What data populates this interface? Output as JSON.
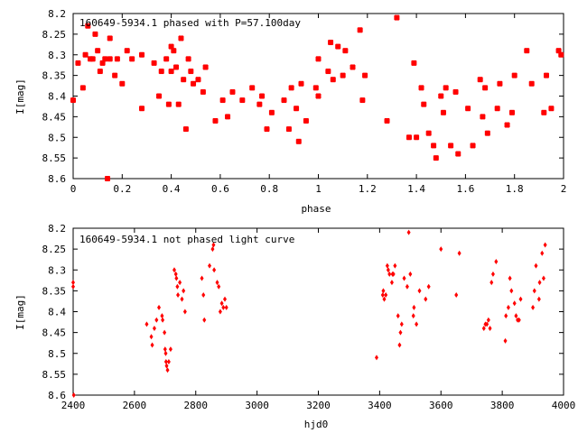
{
  "chart_data": [
    {
      "type": "scatter",
      "title": "160649-5934.1 phased with P=57.100day",
      "xlabel": "phase",
      "ylabel": "I[mag]",
      "xlim": [
        0,
        2
      ],
      "ylim": [
        8.6,
        8.2
      ],
      "y_inverted": true,
      "xticks": [
        "0",
        "0.2",
        "0.4",
        "0.6",
        "0.8",
        "1",
        "1.2",
        "1.4",
        "1.6",
        "1.8",
        "2"
      ],
      "yticks": [
        "8.2",
        "8.25",
        "8.3",
        "8.35",
        "8.4",
        "8.45",
        "8.5",
        "8.55",
        "8.6"
      ],
      "marker_color": "#ff0000",
      "marker": "large-star",
      "series": [
        {
          "x": [
            0.0,
            0.02,
            0.04,
            0.05,
            0.06,
            0.07,
            0.08,
            0.09,
            0.1,
            0.11,
            0.12,
            0.13,
            0.14,
            0.15,
            0.15,
            0.17,
            0.18,
            0.2,
            0.22,
            0.24,
            0.28,
            0.28,
            0.33,
            0.35,
            0.36,
            0.38,
            0.39,
            0.4,
            0.4,
            0.41,
            0.42,
            0.43,
            0.44,
            0.45,
            0.46,
            0.47,
            0.48,
            0.49,
            0.51,
            0.53,
            0.54,
            0.58,
            0.61,
            0.63,
            0.65,
            0.69,
            0.73,
            0.76,
            0.77,
            0.79,
            0.81,
            0.86,
            0.88,
            0.89,
            0.91,
            0.92,
            0.93,
            0.95,
            0.99,
            1.0,
            1.0,
            1.04,
            1.05,
            1.06,
            1.08,
            1.1,
            1.11,
            1.14,
            1.17,
            1.18,
            1.19,
            1.28,
            1.32,
            1.37,
            1.39,
            1.4,
            1.42,
            1.43,
            1.45,
            1.47,
            1.48,
            1.5,
            1.51,
            1.52,
            1.54,
            1.56,
            1.57,
            1.61,
            1.63,
            1.66,
            1.67,
            1.68,
            1.69,
            1.73,
            1.74,
            1.77,
            1.79,
            1.8,
            1.85,
            1.87,
            1.92,
            1.93,
            1.95,
            1.98,
            1.99
          ],
          "y": [
            8.41,
            8.32,
            8.38,
            8.3,
            8.23,
            8.31,
            8.31,
            8.25,
            8.29,
            8.34,
            8.32,
            8.31,
            8.6,
            8.26,
            8.31,
            8.35,
            8.31,
            8.37,
            8.29,
            8.31,
            8.43,
            8.3,
            8.32,
            8.4,
            8.34,
            8.31,
            8.42,
            8.28,
            8.34,
            8.29,
            8.33,
            8.42,
            8.26,
            8.36,
            8.48,
            8.31,
            8.34,
            8.37,
            8.36,
            8.39,
            8.33,
            8.46,
            8.41,
            8.45,
            8.39,
            8.41,
            8.38,
            8.42,
            8.4,
            8.48,
            8.44,
            8.41,
            8.48,
            8.38,
            8.43,
            8.51,
            8.37,
            8.46,
            8.38,
            8.4,
            8.31,
            8.34,
            8.27,
            8.36,
            8.28,
            8.35,
            8.29,
            8.33,
            8.24,
            8.41,
            8.35,
            8.46,
            8.21,
            8.5,
            8.32,
            8.5,
            8.38,
            8.42,
            8.49,
            8.52,
            8.55,
            8.4,
            8.44,
            8.38,
            8.52,
            8.39,
            8.54,
            8.43,
            8.52,
            8.36,
            8.45,
            8.38,
            8.49,
            8.43,
            8.37,
            8.47,
            8.44,
            8.35,
            8.29,
            8.37,
            8.44,
            8.35,
            8.43,
            8.29,
            8.3
          ]
        }
      ]
    },
    {
      "type": "scatter",
      "title": "160649-5934.1 not phased light curve",
      "xlabel": "hjd0",
      "ylabel": "I[mag]",
      "xlim": [
        2400,
        4000
      ],
      "ylim": [
        8.6,
        8.2
      ],
      "y_inverted": true,
      "xticks": [
        "2400",
        "2600",
        "2800",
        "3000",
        "3200",
        "3400",
        "3600",
        "3800",
        "4000"
      ],
      "yticks": [
        "8.2",
        "8.25",
        "8.3",
        "8.35",
        "8.4",
        "8.45",
        "8.5",
        "8.55",
        "8.6"
      ],
      "marker_color": "#ff0000",
      "marker": "small-diamond",
      "series": [
        {
          "x": [
            2400,
            2400,
            2402,
            2640,
            2655,
            2658,
            2665,
            2672,
            2680,
            2690,
            2692,
            2698,
            2700,
            2702,
            2703,
            2705,
            2708,
            2712,
            2718,
            2730,
            2735,
            2737,
            2740,
            2742,
            2748,
            2755,
            2760,
            2765,
            2820,
            2825,
            2828,
            2845,
            2855,
            2858,
            2860,
            2870,
            2875,
            2880,
            2885,
            2890,
            2895,
            2900,
            3390,
            3410,
            3412,
            3415,
            3420,
            3425,
            3428,
            3432,
            3440,
            3442,
            3445,
            3450,
            3460,
            3465,
            3468,
            3472,
            3480,
            3490,
            3495,
            3500,
            3510,
            3512,
            3520,
            3530,
            3550,
            3560,
            3600,
            3650,
            3660,
            3740,
            3745,
            3750,
            3755,
            3760,
            3765,
            3770,
            3780,
            3810,
            3812,
            3820,
            3825,
            3830,
            3840,
            3845,
            3850,
            3855,
            3860,
            3900,
            3905,
            3910,
            3920,
            3922,
            3930,
            3935,
            3940
          ],
          "y": [
            8.33,
            8.34,
            8.6,
            8.43,
            8.46,
            8.48,
            8.44,
            8.42,
            8.39,
            8.41,
            8.42,
            8.45,
            8.49,
            8.5,
            8.52,
            8.53,
            8.54,
            8.52,
            8.49,
            8.3,
            8.31,
            8.32,
            8.34,
            8.36,
            8.33,
            8.37,
            8.35,
            8.4,
            8.32,
            8.36,
            8.42,
            8.29,
            8.25,
            8.24,
            8.3,
            8.33,
            8.34,
            8.4,
            8.38,
            8.39,
            8.37,
            8.39,
            8.51,
            8.36,
            8.35,
            8.37,
            8.36,
            8.29,
            8.3,
            8.31,
            8.33,
            8.31,
            8.31,
            8.29,
            8.41,
            8.48,
            8.45,
            8.43,
            8.32,
            8.34,
            8.21,
            8.31,
            8.41,
            8.39,
            8.43,
            8.35,
            8.37,
            8.34,
            8.25,
            8.36,
            8.26,
            8.44,
            8.43,
            8.43,
            8.42,
            8.44,
            8.33,
            8.31,
            8.28,
            8.47,
            8.41,
            8.39,
            8.32,
            8.35,
            8.38,
            8.41,
            8.42,
            8.42,
            8.37,
            8.39,
            8.35,
            8.29,
            8.37,
            8.33,
            8.26,
            8.32,
            8.24
          ]
        }
      ]
    }
  ]
}
